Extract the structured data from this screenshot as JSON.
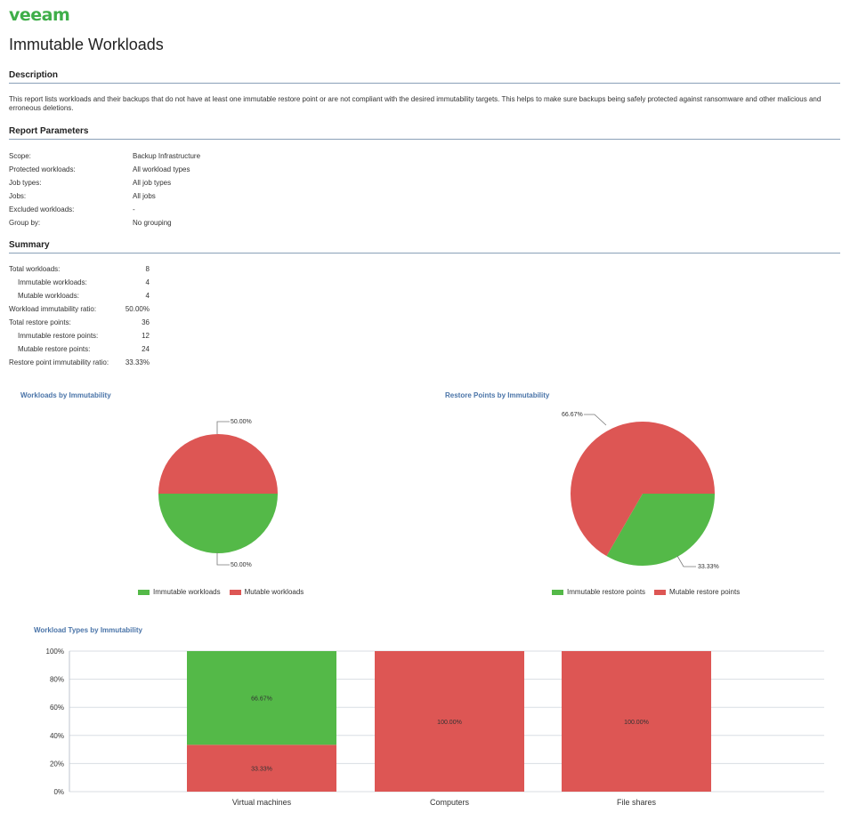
{
  "brand": {
    "logo_text": "veeam",
    "accent": "#3fae49",
    "immutable_color": "#54b948",
    "mutable_color": "#dd5654"
  },
  "page_title": "Immutable Workloads",
  "description": {
    "heading": "Description",
    "text": "This report lists workloads and their backups that do not have at least one immutable restore point or are not compliant with the desired immutability targets. This helps to make sure backups being safely protected against ransomware and other malicious and erroneous deletions."
  },
  "parameters": {
    "heading": "Report Parameters",
    "rows": [
      {
        "label": "Scope:",
        "value": "Backup Infrastructure"
      },
      {
        "label": "Protected workloads:",
        "value": "All workload types"
      },
      {
        "label": "Job types:",
        "value": "All job types"
      },
      {
        "label": "Jobs:",
        "value": "All jobs"
      },
      {
        "label": "Excluded workloads:",
        "value": "-"
      },
      {
        "label": "Group by:",
        "value": "No grouping"
      }
    ]
  },
  "summary": {
    "heading": "Summary",
    "rows": [
      {
        "label": "Total workloads:",
        "value": "8",
        "indent": false
      },
      {
        "label": "Immutable workloads:",
        "value": "4",
        "indent": true
      },
      {
        "label": "Mutable workloads:",
        "value": "4",
        "indent": true
      },
      {
        "label": "Workload immutability ratio:",
        "value": "50.00%",
        "indent": false
      },
      {
        "label": "Total restore points:",
        "value": "36",
        "indent": false
      },
      {
        "label": "Immutable restore points:",
        "value": "12",
        "indent": true
      },
      {
        "label": "Mutable restore points:",
        "value": "24",
        "indent": true
      },
      {
        "label": "Restore point immutability ratio:",
        "value": "33.33%",
        "indent": false
      }
    ]
  },
  "chart_data": [
    {
      "type": "pie",
      "title": "Workloads by Immutability",
      "labels": [
        "Immutable workloads",
        "Mutable workloads"
      ],
      "values": [
        50.0,
        50.0
      ],
      "value_labels": [
        "50.00%",
        "50.00%"
      ],
      "legend": "bottom"
    },
    {
      "type": "pie",
      "title": "Restore Points by Immutability",
      "labels": [
        "Immutable restore points",
        "Mutable restore points"
      ],
      "values": [
        33.33,
        66.67
      ],
      "value_labels": [
        "33.33%",
        "66.67%"
      ],
      "legend": "bottom"
    },
    {
      "type": "bar",
      "stacked": true,
      "title": "Workload Types by Immutability",
      "categories": [
        "Virtual machines",
        "Computers",
        "File shares"
      ],
      "series": [
        {
          "values": [
            66.67,
            0,
            0
          ],
          "labels": [
            "66.67%",
            "",
            ""
          ]
        },
        {
          "values": [
            33.33,
            100,
            100
          ],
          "labels": [
            "33.33%",
            "100.00%",
            "100.00%"
          ]
        }
      ],
      "ylim": [
        0,
        100
      ],
      "yticks": [
        "0%",
        "20%",
        "40%",
        "60%",
        "80%",
        "100%"
      ],
      "grid": true
    }
  ]
}
